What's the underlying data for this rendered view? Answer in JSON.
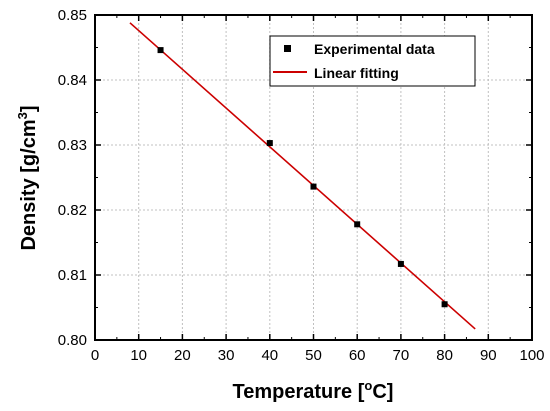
{
  "chart_data": {
    "type": "scatter",
    "xlabel": "Temperature [°C]",
    "ylabel": "Density [g/cm3]",
    "xlim": [
      0,
      100
    ],
    "ylim": [
      0.8,
      0.85
    ],
    "x_ticks": [
      "0",
      "10",
      "20",
      "30",
      "40",
      "50",
      "60",
      "70",
      "80",
      "90",
      "100"
    ],
    "y_ticks": [
      "0.80",
      "0.81",
      "0.82",
      "0.83",
      "0.84",
      "0.85"
    ],
    "grid": true,
    "legend_position": "top-right",
    "series": [
      {
        "name": "Experimental data",
        "kind": "scatter",
        "marker": "square",
        "color": "#000000",
        "x": [
          15,
          40,
          50,
          60,
          70,
          80
        ],
        "y": [
          0.8446,
          0.8303,
          0.8236,
          0.8178,
          0.8117,
          0.8055
        ]
      },
      {
        "name": "Linear fitting",
        "kind": "line",
        "color": "#cc0000",
        "x": [
          8,
          87
        ],
        "y": [
          0.8488,
          0.8017
        ]
      }
    ]
  }
}
